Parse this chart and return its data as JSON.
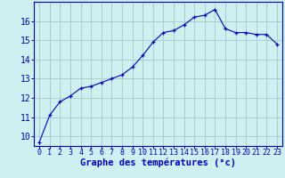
{
  "x": [
    0,
    1,
    2,
    3,
    4,
    5,
    6,
    7,
    8,
    9,
    10,
    11,
    12,
    13,
    14,
    15,
    16,
    17,
    18,
    19,
    20,
    21,
    22,
    23
  ],
  "y": [
    9.7,
    11.1,
    11.8,
    12.1,
    12.5,
    12.6,
    12.8,
    13.0,
    13.2,
    13.6,
    14.2,
    14.9,
    15.4,
    15.5,
    15.8,
    16.2,
    16.3,
    16.6,
    15.6,
    15.4,
    15.4,
    15.3,
    15.3,
    14.8
  ],
  "xlabel": "Graphe des températures (°c)",
  "xticks": [
    0,
    1,
    2,
    3,
    4,
    5,
    6,
    7,
    8,
    9,
    10,
    11,
    12,
    13,
    14,
    15,
    16,
    17,
    18,
    19,
    20,
    21,
    22,
    23
  ],
  "yticks": [
    10,
    11,
    12,
    13,
    14,
    15,
    16
  ],
  "ylim": [
    9.5,
    17.0
  ],
  "xlim": [
    -0.5,
    23.5
  ],
  "line_color": "#0000cc",
  "marker": "+",
  "bg_color": "#cff0f0",
  "grid_color": "#a8cece",
  "axis_label_color": "#0000cc",
  "tick_color": "#0000cc",
  "xlabel_fontsize": 7.5,
  "ytick_fontsize": 7,
  "xtick_fontsize": 6
}
